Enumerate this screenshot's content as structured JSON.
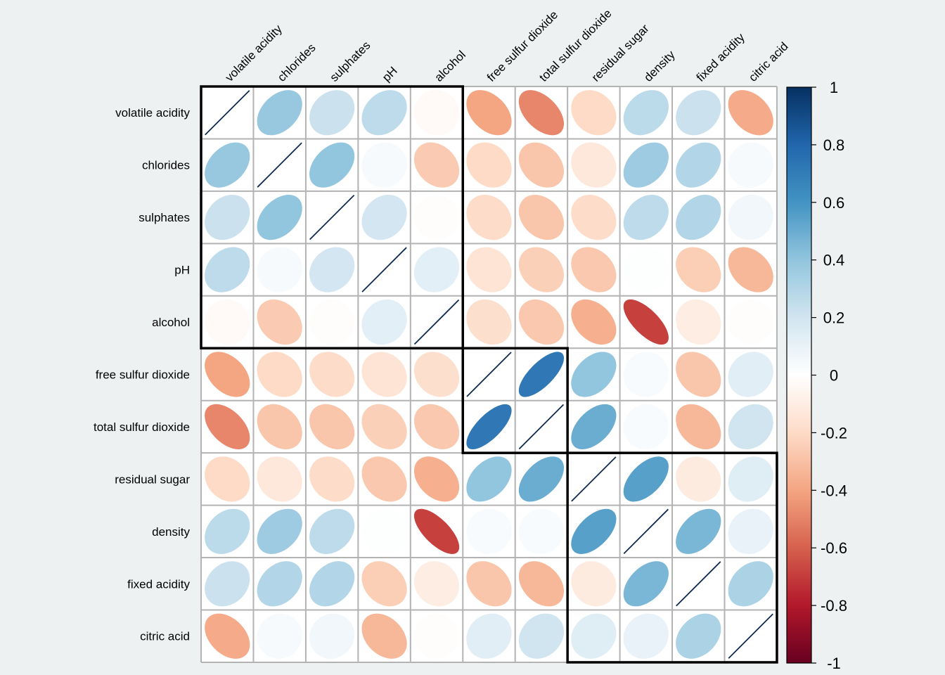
{
  "chart_data": {
    "type": "heatmap",
    "subtype": "correlation-ellipse",
    "title": "",
    "variables": [
      "volatile acidity",
      "chlorides",
      "sulphates",
      "pH",
      "alcohol",
      "free sulfur dioxide",
      "total sulfur dioxide",
      "residual sugar",
      "density",
      "fixed acidity",
      "citric acid"
    ],
    "matrix": [
      [
        1.0,
        0.38,
        0.22,
        0.26,
        -0.03,
        -0.4,
        -0.49,
        -0.2,
        0.27,
        0.22,
        -0.38
      ],
      [
        0.38,
        1.0,
        0.4,
        0.04,
        -0.26,
        -0.2,
        -0.28,
        -0.13,
        0.36,
        0.3,
        0.04
      ],
      [
        0.22,
        0.4,
        1.0,
        0.19,
        -0.01,
        -0.19,
        -0.28,
        -0.19,
        0.26,
        0.3,
        0.06
      ],
      [
        0.26,
        0.04,
        0.19,
        1.0,
        0.12,
        -0.15,
        -0.24,
        -0.27,
        0.01,
        -0.25,
        -0.33
      ],
      [
        -0.03,
        -0.26,
        -0.01,
        0.12,
        1.0,
        -0.18,
        -0.27,
        -0.36,
        -0.69,
        -0.1,
        -0.01
      ],
      [
        -0.4,
        -0.2,
        -0.19,
        -0.15,
        -0.18,
        1.0,
        0.72,
        0.4,
        0.03,
        -0.28,
        0.13
      ],
      [
        -0.49,
        -0.28,
        -0.28,
        -0.24,
        -0.27,
        0.72,
        1.0,
        0.5,
        0.03,
        -0.33,
        0.2
      ],
      [
        -0.2,
        -0.13,
        -0.19,
        -0.27,
        -0.36,
        0.4,
        0.5,
        1.0,
        0.55,
        -0.11,
        0.14
      ],
      [
        0.27,
        0.36,
        0.26,
        0.01,
        -0.69,
        0.03,
        0.03,
        0.55,
        1.0,
        0.46,
        0.1
      ],
      [
        0.22,
        0.3,
        0.3,
        -0.25,
        -0.1,
        -0.28,
        -0.33,
        -0.11,
        0.46,
        1.0,
        0.32
      ],
      [
        -0.38,
        0.04,
        0.06,
        -0.33,
        -0.01,
        0.13,
        0.2,
        0.14,
        0.1,
        0.32,
        1.0
      ]
    ],
    "clusters": [
      [
        0,
        4
      ],
      [
        5,
        6
      ],
      [
        7,
        10
      ]
    ],
    "colorbar": {
      "range": [
        -1,
        1
      ],
      "ticks": [
        "1",
        "0.8",
        "0.6",
        "0.4",
        "0.2",
        "0",
        "-0.2",
        "-0.4",
        "-0.6",
        "-0.8",
        "-1"
      ],
      "tick_values": [
        1,
        0.8,
        0.6,
        0.4,
        0.2,
        0,
        -0.2,
        -0.4,
        -0.6,
        -0.8,
        -1
      ],
      "palette": [
        "#67001F",
        "#B2182B",
        "#D6604D",
        "#F4A582",
        "#FDDBC7",
        "#FFFFFF",
        "#D1E5F0",
        "#92C5DE",
        "#4393C3",
        "#2166AC",
        "#053061"
      ],
      "placement": "right"
    },
    "xlabel": "",
    "ylabel": "",
    "grid": true
  }
}
